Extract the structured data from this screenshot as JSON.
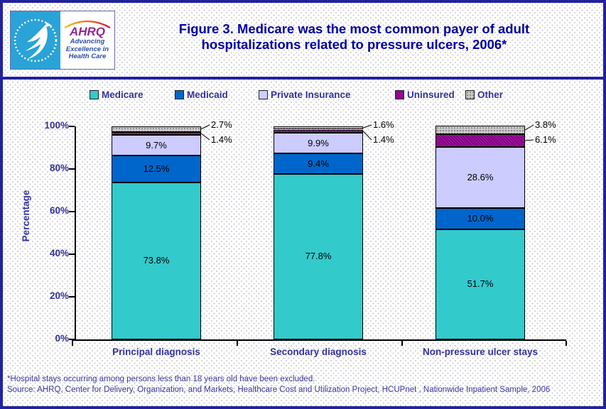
{
  "header": {
    "logo": {
      "hhs_icon": "hhs-eagle-icon",
      "ahrq_acronym": "AHRQ",
      "tagline": [
        "Advancing",
        "Excellence in",
        "Health Care"
      ]
    },
    "title_line1": "Figure 3. Medicare was the most common payer of adult",
    "title_line2": "hospitalizations related to pressure ulcers, 2006*"
  },
  "chart_data": {
    "type": "bar",
    "stacked": true,
    "title": "Figure 3. Medicare was the most common payer of adult hospitalizations related to pressure ulcers, 2006*",
    "xlabel": "",
    "ylabel": "Percentage",
    "ylim": [
      0,
      100
    ],
    "y_ticks": [
      "0%",
      "20%",
      "40%",
      "60%",
      "80%",
      "100%"
    ],
    "grid": false,
    "legend_position": "top",
    "categories": [
      "Principal diagnosis",
      "Secondary diagnosis",
      "Non-pressure ulcer stays"
    ],
    "series": [
      {
        "name": "Medicare",
        "color": "#33CACC",
        "pattern": "solid",
        "label_placement": "inside",
        "values": [
          73.8,
          77.8,
          51.7
        ]
      },
      {
        "name": "Medicaid",
        "color": "#0066CC",
        "pattern": "solid",
        "label_placement": "inside",
        "values": [
          12.5,
          9.4,
          10.0
        ]
      },
      {
        "name": "Private Insurance",
        "color": "#CCCCFF",
        "pattern": "solid",
        "label_placement": "inside",
        "values": [
          9.7,
          9.9,
          28.6
        ]
      },
      {
        "name": "Uninsured",
        "color": "#990099",
        "pattern": "hatch",
        "label_placement": "callout",
        "callout_row": 1,
        "values": [
          1.4,
          1.4,
          6.1
        ]
      },
      {
        "name": "Other",
        "color": "#C9C9C9",
        "pattern": "dots",
        "label_placement": "callout",
        "callout_row": 0,
        "values": [
          2.7,
          1.6,
          3.8
        ]
      }
    ],
    "value_label_format": "{value}%"
  },
  "footnotes": [
    "*Hospital stays occurring among persons less than 18 years old have been excluded.",
    "Source: AHRQ, Center for Delivery, Organization, and Markets, Healthcare Cost and Utilization Project, HCUPnet , Nationwide Inpatient Sample, 2006"
  ]
}
